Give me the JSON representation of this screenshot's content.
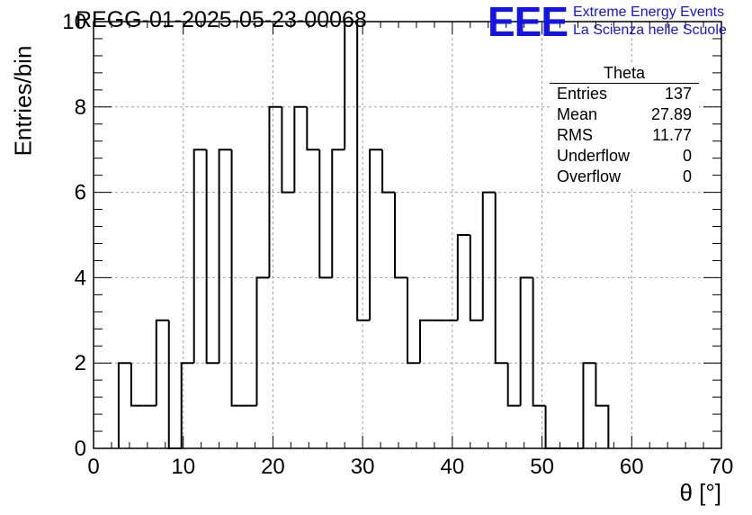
{
  "chart_data": {
    "type": "histogram",
    "title": "REGG-01-2025-05-23-00068",
    "xlabel": "θ [°]",
    "ylabel": "Entries/bin",
    "xlim": [
      0,
      70
    ],
    "ylim": [
      0,
      10
    ],
    "xticks": [
      "0",
      "10",
      "20",
      "30",
      "40",
      "50",
      "60",
      "70"
    ],
    "yticks": [
      "0",
      "2",
      "4",
      "6",
      "8",
      "10"
    ],
    "grid": true,
    "bin_edges": [
      2.8,
      4.2,
      5.6,
      7.0,
      8.4,
      9.8,
      11.2,
      12.6,
      14.0,
      15.4,
      16.8,
      18.2,
      19.6,
      21.0,
      22.4,
      23.8,
      25.2,
      26.6,
      28.0,
      29.4,
      30.8,
      32.2,
      33.6,
      35.0,
      36.4,
      37.8,
      39.2,
      40.6,
      42.0,
      43.4,
      44.8,
      46.2,
      47.6,
      49.0,
      50.4,
      51.8,
      53.2,
      54.6,
      56.0,
      57.4
    ],
    "values": [
      2,
      1,
      1,
      3,
      0,
      2,
      7,
      2,
      7,
      1,
      1,
      4,
      8,
      6,
      8,
      7,
      4,
      7,
      10,
      3,
      7,
      6,
      4,
      2,
      3,
      3,
      3,
      5,
      3,
      6,
      2,
      1,
      4,
      1,
      0,
      0,
      0,
      2,
      1
    ],
    "color": "#000000"
  },
  "stats_box": {
    "title": "Theta",
    "rows": [
      {
        "label": "Entries",
        "value": "137"
      },
      {
        "label": "Mean",
        "value": "27.89"
      },
      {
        "label": "RMS",
        "value": "11.77"
      },
      {
        "label": "Underflow",
        "value": "0"
      },
      {
        "label": "Overflow",
        "value": "0"
      }
    ]
  },
  "logo": {
    "mark": "EEE",
    "line1": "Extreme Energy Events",
    "line2": "La Scienza nelle Scuole",
    "color": "#1414e6"
  }
}
